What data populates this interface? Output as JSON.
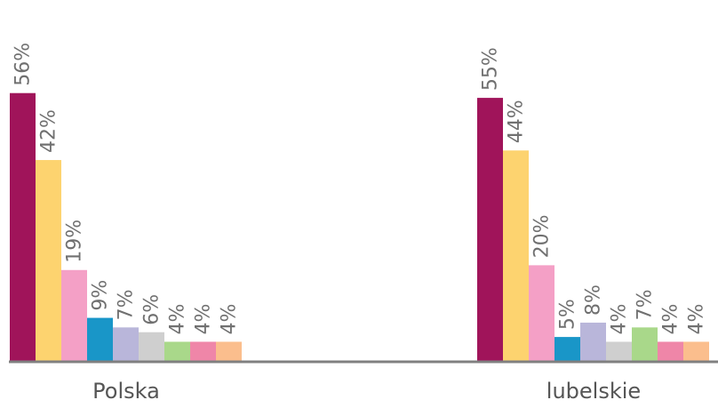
{
  "chart_data": {
    "type": "bar",
    "categories": [
      "Polska",
      "lubelskie"
    ],
    "series": [
      {
        "color": "#a0145a",
        "values": [
          56,
          55
        ]
      },
      {
        "color": "#fdd36f",
        "values": [
          42,
          44
        ]
      },
      {
        "color": "#f4a0c6",
        "values": [
          19,
          20
        ]
      },
      {
        "color": "#1996c8",
        "values": [
          9,
          5
        ]
      },
      {
        "color": "#b9b6da",
        "values": [
          7,
          8
        ]
      },
      {
        "color": "#cfcfcf",
        "values": [
          6,
          4
        ]
      },
      {
        "color": "#a9d88a",
        "values": [
          4,
          7
        ]
      },
      {
        "color": "#ef86a8",
        "values": [
          4,
          4
        ]
      },
      {
        "color": "#fbbe8d",
        "values": [
          4,
          4
        ]
      }
    ],
    "value_labels": [
      [
        "56%",
        "42%",
        "19%",
        "9%",
        "7%",
        "6%",
        "4%",
        "4%",
        "4%"
      ],
      [
        "55%",
        "44%",
        "20%",
        "5%",
        "8%",
        "4%",
        "7%",
        "4%",
        "4%"
      ]
    ],
    "ylim": [
      0,
      60
    ],
    "axis_color": "#808080",
    "grid": false,
    "legend": false
  }
}
